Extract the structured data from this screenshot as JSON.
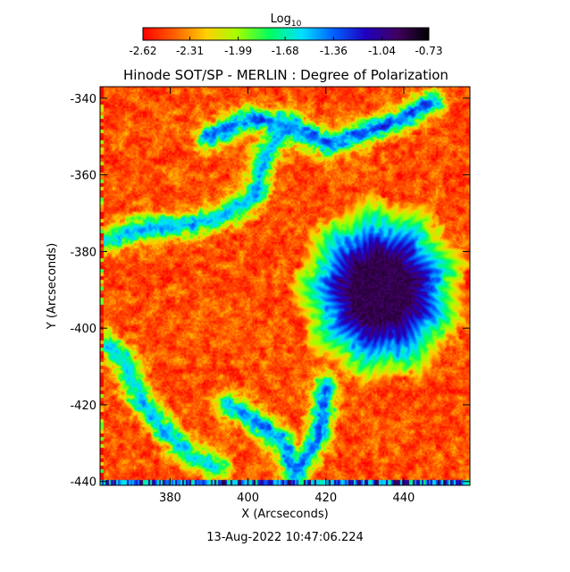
{
  "chart_data": {
    "type": "heatmap",
    "title": "Hinode SOT/SP - MERLIN : Degree of Polarization",
    "xlabel": "X (Arcseconds)",
    "ylabel": "Y (Arcseconds)",
    "xlim": [
      362,
      457
    ],
    "ylim": [
      -441,
      -337
    ],
    "x_ticks": [
      380,
      400,
      420,
      440
    ],
    "x_tick_labels": [
      "380",
      "400",
      "420",
      "440"
    ],
    "y_ticks": [
      -340,
      -360,
      -380,
      -400,
      -420,
      -440
    ],
    "y_tick_labels": [
      "-340",
      "-360",
      "-380",
      "-400",
      "-420",
      "-440"
    ],
    "colorbar": {
      "label_base": "Log",
      "label_sub": "10",
      "range": [
        -2.62,
        -0.73
      ],
      "ticks": [
        -2.62,
        -2.31,
        -1.99,
        -1.68,
        -1.36,
        -1.04,
        -0.73
      ],
      "tick_labels": [
        "-2.62",
        "-2.31",
        "-1.99",
        "-1.68",
        "-1.36",
        "-1.04",
        "-0.73"
      ],
      "colormap": "rainbow (red low, black high)",
      "stops": [
        "#ff0000",
        "#ff6000",
        "#ffd000",
        "#a0ff00",
        "#00ff60",
        "#00e0ff",
        "#0060ff",
        "#2000c0",
        "#400060",
        "#000000"
      ]
    },
    "features": [
      {
        "name": "sunspot",
        "center": [
          434,
          -390
        ],
        "umbra_radius": 8,
        "penumbra_radius": 17,
        "peak_value": -0.95
      },
      {
        "name": "network-lane-upper",
        "path": [
          [
            390,
            -350
          ],
          [
            400,
            -345
          ],
          [
            410,
            -347
          ],
          [
            420,
            -352
          ],
          [
            430,
            -349
          ],
          [
            440,
            -345
          ],
          [
            447,
            -341
          ]
        ],
        "value": -1.3
      },
      {
        "name": "network-lane-upper-branch",
        "path": [
          [
            410,
            -347
          ],
          [
            404,
            -355
          ],
          [
            402,
            -365
          ],
          [
            395,
            -370
          ],
          [
            385,
            -373
          ],
          [
            372,
            -374
          ],
          [
            363,
            -377
          ]
        ],
        "value": -1.45
      },
      {
        "name": "network-lane-lower",
        "path": [
          [
            395,
            -420
          ],
          [
            403,
            -425
          ],
          [
            410,
            -431
          ],
          [
            412,
            -438
          ],
          [
            418,
            -428
          ],
          [
            420,
            -415
          ]
        ],
        "value": -1.35
      },
      {
        "name": "network-lane-left",
        "path": [
          [
            363,
            -404
          ],
          [
            368,
            -408
          ],
          [
            372,
            -418
          ],
          [
            378,
            -426
          ],
          [
            385,
            -433
          ],
          [
            392,
            -436
          ]
        ],
        "value": -1.5
      }
    ],
    "background_value": -2.45
  },
  "footer": {
    "timestamp": "13-Aug-2022 10:47:06.224"
  }
}
